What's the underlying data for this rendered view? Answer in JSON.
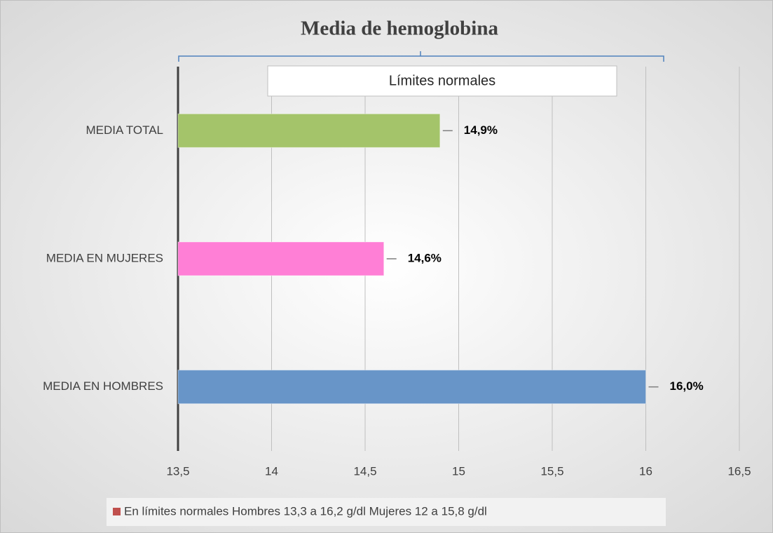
{
  "chart_data": {
    "type": "hbar",
    "title": "Media de hemoglobina",
    "annotation": "Límites normales",
    "legend_text": "En límites normales Hombres 13,3 a 16,2 g/dl  Mujeres 12 a 15,8 g/dl",
    "legend_color": "#c0504d",
    "categories": [
      "MEDIA TOTAL",
      "MEDIA EN MUJERES",
      "MEDIA EN HOMBRES"
    ],
    "values": [
      14.9,
      14.6,
      16.0
    ],
    "value_labels": [
      "14,9%",
      "14,6%",
      "16,0%"
    ],
    "colors": [
      "#a4c46a",
      "#ff7fd6",
      "#6895c8"
    ],
    "xlim": [
      13.5,
      16.5
    ],
    "xticks": [
      {
        "value": 13.5,
        "label": "13,5"
      },
      14,
      {
        "value": 14.5,
        "label": "14,5"
      },
      15,
      {
        "value": 15.5,
        "label": "15,5"
      },
      16,
      {
        "value": 16.5,
        "label": "16,5"
      }
    ],
    "grid": true
  }
}
